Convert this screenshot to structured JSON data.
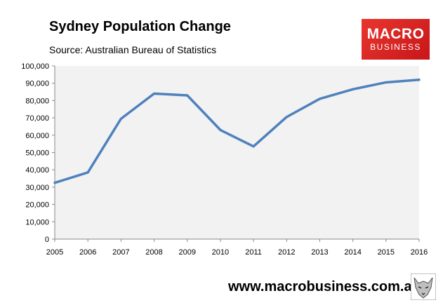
{
  "title": "Sydney Population Change",
  "subtitle": "Source: Australian Bureau of Statistics",
  "logo": {
    "line1": "MACRO",
    "line2": "BUSINESS",
    "color": "#d9252a"
  },
  "footer": {
    "url": "www.macrobusiness.com.au",
    "mark_icon": "wolf-face-icon"
  },
  "chart_data": {
    "type": "line",
    "x": [
      2005,
      2006,
      2007,
      2008,
      2009,
      2010,
      2011,
      2012,
      2013,
      2014,
      2015,
      2016
    ],
    "series": [
      {
        "values": [
          32500,
          38500,
          69500,
          84000,
          83000,
          63000,
          53500,
          70500,
          81000,
          86500,
          90500,
          92000
        ],
        "color": "#4f81bd"
      }
    ],
    "ylim": [
      0,
      100000
    ],
    "yticks": [
      "0",
      "10,000",
      "20,000",
      "30,000",
      "40,000",
      "50,000",
      "60,000",
      "70,000",
      "80,000",
      "90,000",
      "100,000"
    ],
    "xticks": [
      "2005",
      "2006",
      "2007",
      "2008",
      "2009",
      "2010",
      "2011",
      "2012",
      "2013",
      "2014",
      "2015",
      "2016"
    ],
    "plot_background": "#f2f2f2",
    "grid": false,
    "legend": "none"
  }
}
